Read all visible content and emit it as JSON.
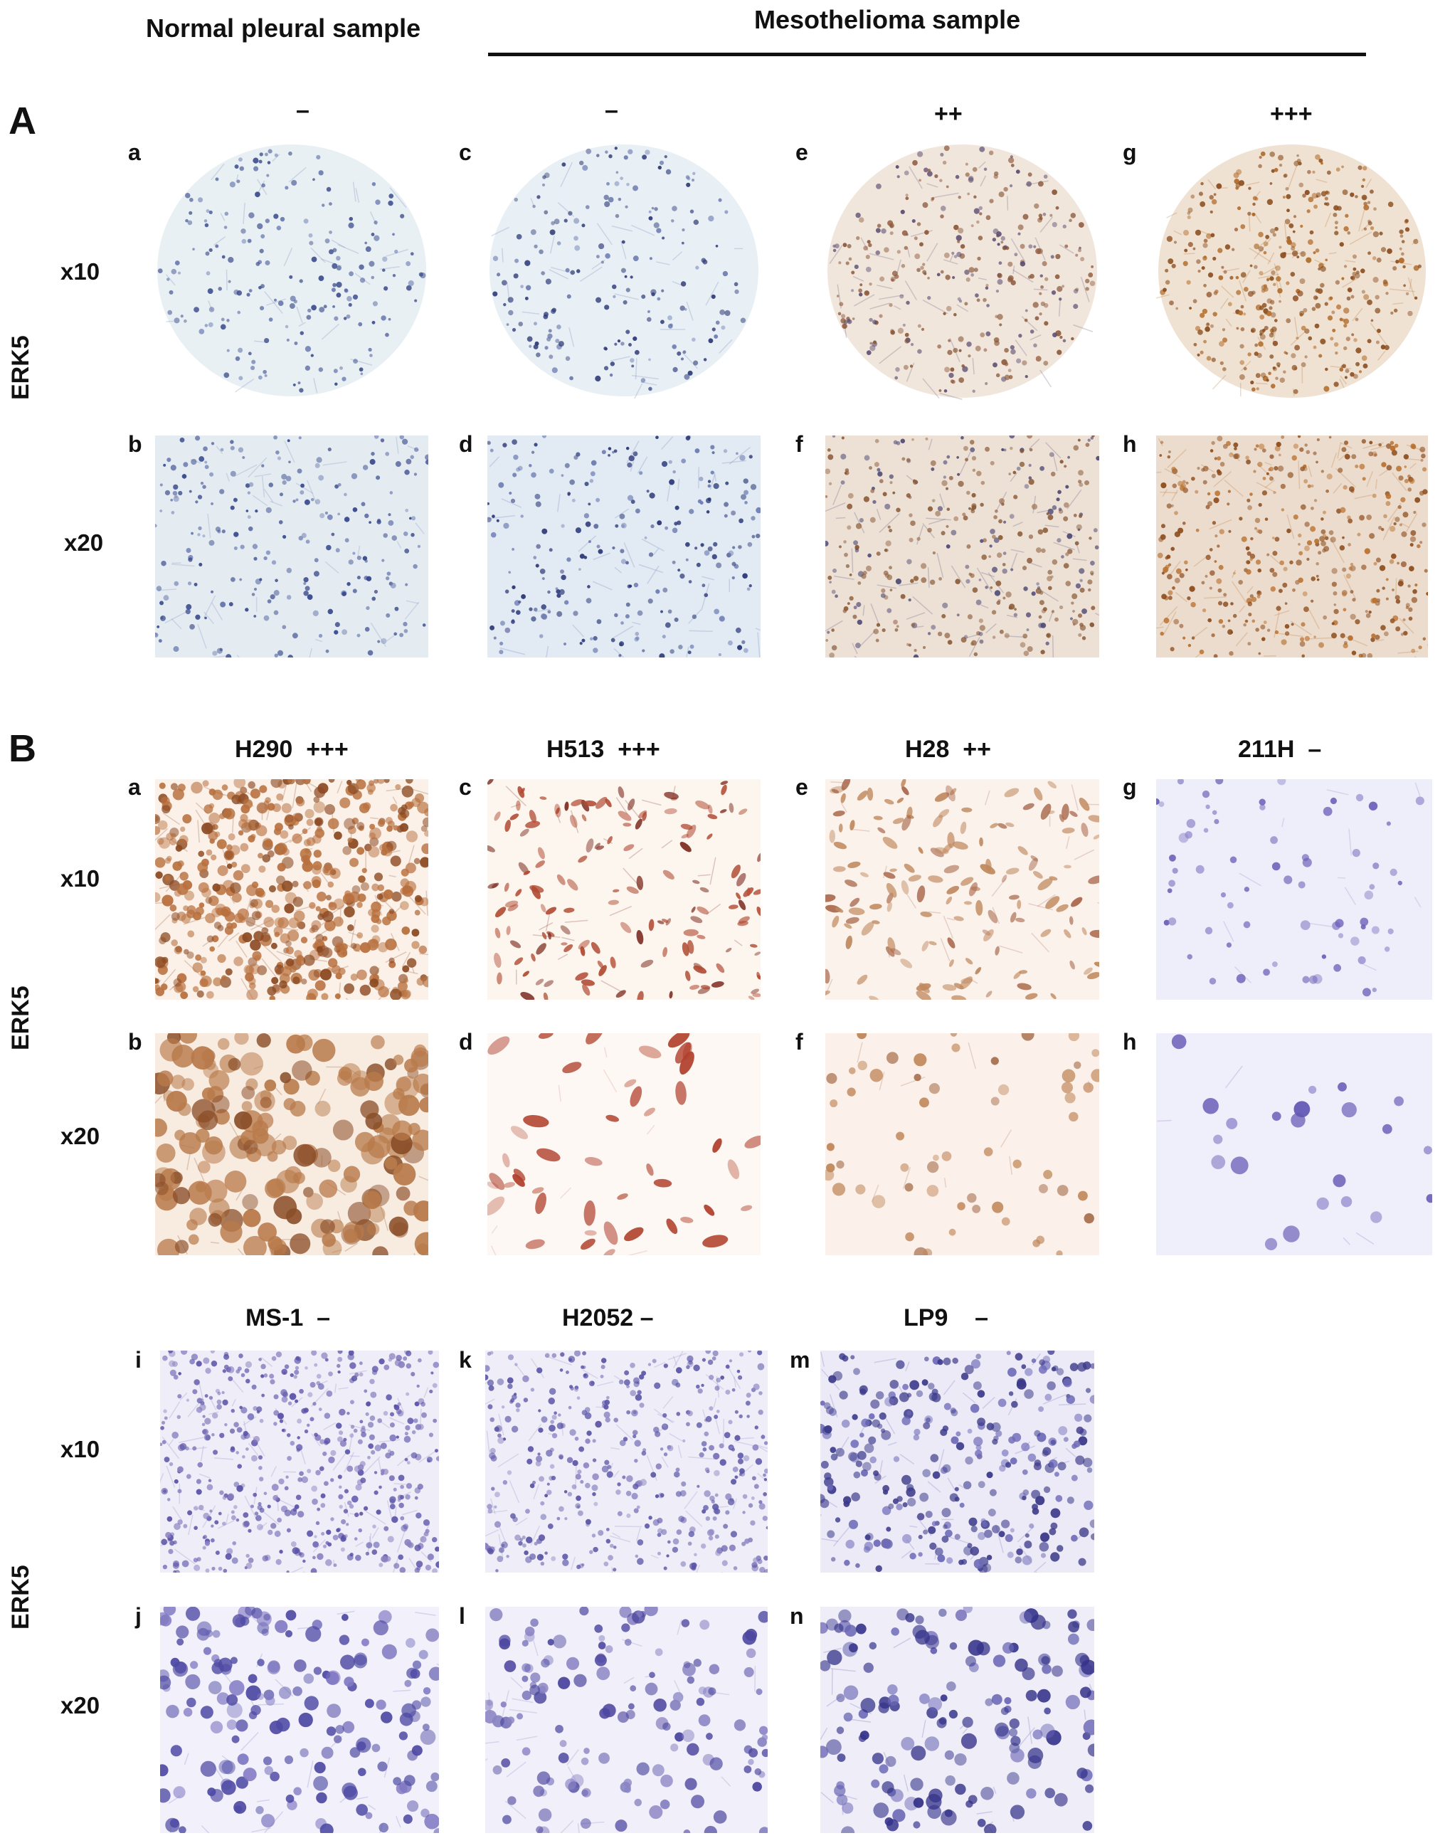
{
  "header": {
    "normal": "Normal pleural sample",
    "meso": "Mesothelioma sample"
  },
  "sectionA": {
    "letter": "A",
    "side_label": "ERK5",
    "mag_top": "x10",
    "mag_bottom": "x20",
    "columns": [
      {
        "score": "–",
        "top": "a",
        "bottom": "b",
        "stain": "negative"
      },
      {
        "score": "–",
        "top": "c",
        "bottom": "d",
        "stain": "negative"
      },
      {
        "score": "++",
        "top": "e",
        "bottom": "f",
        "stain": "positive"
      },
      {
        "score": "+++",
        "top": "g",
        "bottom": "h",
        "stain": "strong positive"
      }
    ]
  },
  "sectionB": {
    "letter": "B",
    "side_label": "ERK5",
    "side_label_2": "ERK5",
    "mag_top": "x10",
    "mag_bottom": "x20",
    "mag_top_2": "x10",
    "mag_bottom_2": "x20",
    "row1": [
      {
        "name": "H290",
        "score": "+++",
        "top": "a",
        "bottom": "b"
      },
      {
        "name": "H513",
        "score": "+++",
        "top": "c",
        "bottom": "d"
      },
      {
        "name": "H28",
        "score": "++",
        "top": "e",
        "bottom": "f"
      },
      {
        "name": "211H",
        "score": "–",
        "top": "g",
        "bottom": "h"
      }
    ],
    "row2": [
      {
        "name": "MS-1",
        "score": "–",
        "top": "i",
        "bottom": "j"
      },
      {
        "name": "H2052",
        "score": "–",
        "top": "k",
        "bottom": "l"
      },
      {
        "name": "LP9",
        "score": "–",
        "top": "m",
        "bottom": "n"
      }
    ]
  },
  "colors": {
    "hematoxylin": "#3d4c8f",
    "dab_brown": "#9c5a2a",
    "tissue_blue_bg": "#e6eef3",
    "cell_purple": "#6b62b8"
  }
}
